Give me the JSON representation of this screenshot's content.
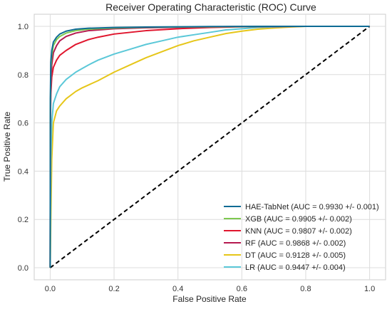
{
  "chart_data": {
    "type": "line",
    "title": "Receiver Operating Characteristic (ROC) Curve",
    "xlabel": "False Positive Rate",
    "ylabel": "True Positive Rate",
    "xlim": [
      -0.05,
      1.05
    ],
    "ylim": [
      -0.05,
      1.05
    ],
    "xticks": [
      {
        "value": 0.0,
        "label": "0.0"
      },
      {
        "value": 0.2,
        "label": "0.2"
      },
      {
        "value": 0.4,
        "label": "0.4"
      },
      {
        "value": 0.6,
        "label": "0.6"
      },
      {
        "value": 0.8,
        "label": "0.8"
      },
      {
        "value": 1.0,
        "label": "1.0"
      }
    ],
    "yticks": [
      {
        "value": 0.0,
        "label": "0.0"
      },
      {
        "value": 0.2,
        "label": "0.2"
      },
      {
        "value": 0.4,
        "label": "0.4"
      },
      {
        "value": 0.6,
        "label": "0.6"
      },
      {
        "value": 0.8,
        "label": "0.8"
      },
      {
        "value": 1.0,
        "label": "1.0"
      }
    ],
    "grid": true,
    "legend_position": "bottom-right",
    "diagonal": {
      "x": [
        0,
        1
      ],
      "y": [
        0,
        1
      ],
      "color": "#000000",
      "style": "dashed"
    },
    "series": [
      {
        "name": "HAE-TabNet (AUC = 0.9930 +/- 0.001)",
        "color": "#0e6b94",
        "x": [
          0,
          0.0005,
          0.002,
          0.005,
          0.01,
          0.02,
          0.03,
          0.05,
          0.08,
          0.12,
          0.2,
          0.3,
          0.5,
          0.7,
          1.0
        ],
        "y": [
          0,
          0.7,
          0.85,
          0.9,
          0.935,
          0.955,
          0.968,
          0.98,
          0.988,
          0.992,
          0.995,
          0.997,
          0.999,
          1.0,
          1.0
        ]
      },
      {
        "name": "XGB (AUC = 0.9905 +/- 0.002)",
        "color": "#7ec850",
        "x": [
          0,
          0.0005,
          0.002,
          0.005,
          0.01,
          0.02,
          0.03,
          0.05,
          0.08,
          0.12,
          0.2,
          0.3,
          0.5,
          0.7,
          1.0
        ],
        "y": [
          0,
          0.65,
          0.82,
          0.88,
          0.92,
          0.945,
          0.958,
          0.972,
          0.982,
          0.988,
          0.993,
          0.996,
          0.998,
          1.0,
          1.0
        ]
      },
      {
        "name": "KNN (AUC = 0.9807 +/- 0.002)",
        "color": "#e0152d",
        "x": [
          0,
          0.0005,
          0.002,
          0.005,
          0.01,
          0.02,
          0.03,
          0.05,
          0.08,
          0.12,
          0.15,
          0.2,
          0.3,
          0.4,
          0.5,
          0.6,
          0.8,
          1.0
        ],
        "y": [
          0,
          0.6,
          0.72,
          0.79,
          0.83,
          0.86,
          0.88,
          0.9,
          0.925,
          0.945,
          0.955,
          0.968,
          0.982,
          0.99,
          0.995,
          0.998,
          1.0,
          1.0
        ]
      },
      {
        "name": "RF (AUC = 0.9868 +/- 0.002)",
        "color": "#b5194f",
        "x": [
          0,
          0.0005,
          0.002,
          0.005,
          0.01,
          0.02,
          0.03,
          0.05,
          0.08,
          0.12,
          0.2,
          0.3,
          0.5,
          0.7,
          1.0
        ],
        "y": [
          0,
          0.55,
          0.75,
          0.84,
          0.89,
          0.92,
          0.94,
          0.958,
          0.972,
          0.982,
          0.99,
          0.994,
          0.998,
          1.0,
          1.0
        ]
      },
      {
        "name": "DT (AUC = 0.9128 +/- 0.005)",
        "color": "#e6c619",
        "x": [
          0,
          0.002,
          0.005,
          0.01,
          0.02,
          0.03,
          0.05,
          0.08,
          0.1,
          0.15,
          0.2,
          0.25,
          0.3,
          0.35,
          0.4,
          0.45,
          0.5,
          0.55,
          0.6,
          0.65,
          0.7,
          0.75,
          0.8,
          0.9,
          1.0
        ],
        "y": [
          0,
          0.2,
          0.45,
          0.6,
          0.65,
          0.67,
          0.7,
          0.73,
          0.745,
          0.775,
          0.81,
          0.84,
          0.87,
          0.895,
          0.92,
          0.94,
          0.955,
          0.97,
          0.98,
          0.988,
          0.993,
          0.997,
          1.0,
          1.0,
          1.0
        ]
      },
      {
        "name": "LR (AUC = 0.9447 +/- 0.004)",
        "color": "#5bc8d8",
        "x": [
          0,
          0.002,
          0.005,
          0.01,
          0.02,
          0.03,
          0.05,
          0.08,
          0.1,
          0.12,
          0.15,
          0.2,
          0.25,
          0.3,
          0.35,
          0.4,
          0.45,
          0.5,
          0.55,
          0.6,
          0.65,
          0.7,
          0.75,
          0.8,
          1.0
        ],
        "y": [
          0,
          0.45,
          0.6,
          0.68,
          0.72,
          0.75,
          0.78,
          0.81,
          0.825,
          0.84,
          0.86,
          0.885,
          0.905,
          0.925,
          0.94,
          0.955,
          0.965,
          0.975,
          0.985,
          0.99,
          0.995,
          0.997,
          0.999,
          1.0,
          1.0
        ]
      }
    ]
  }
}
